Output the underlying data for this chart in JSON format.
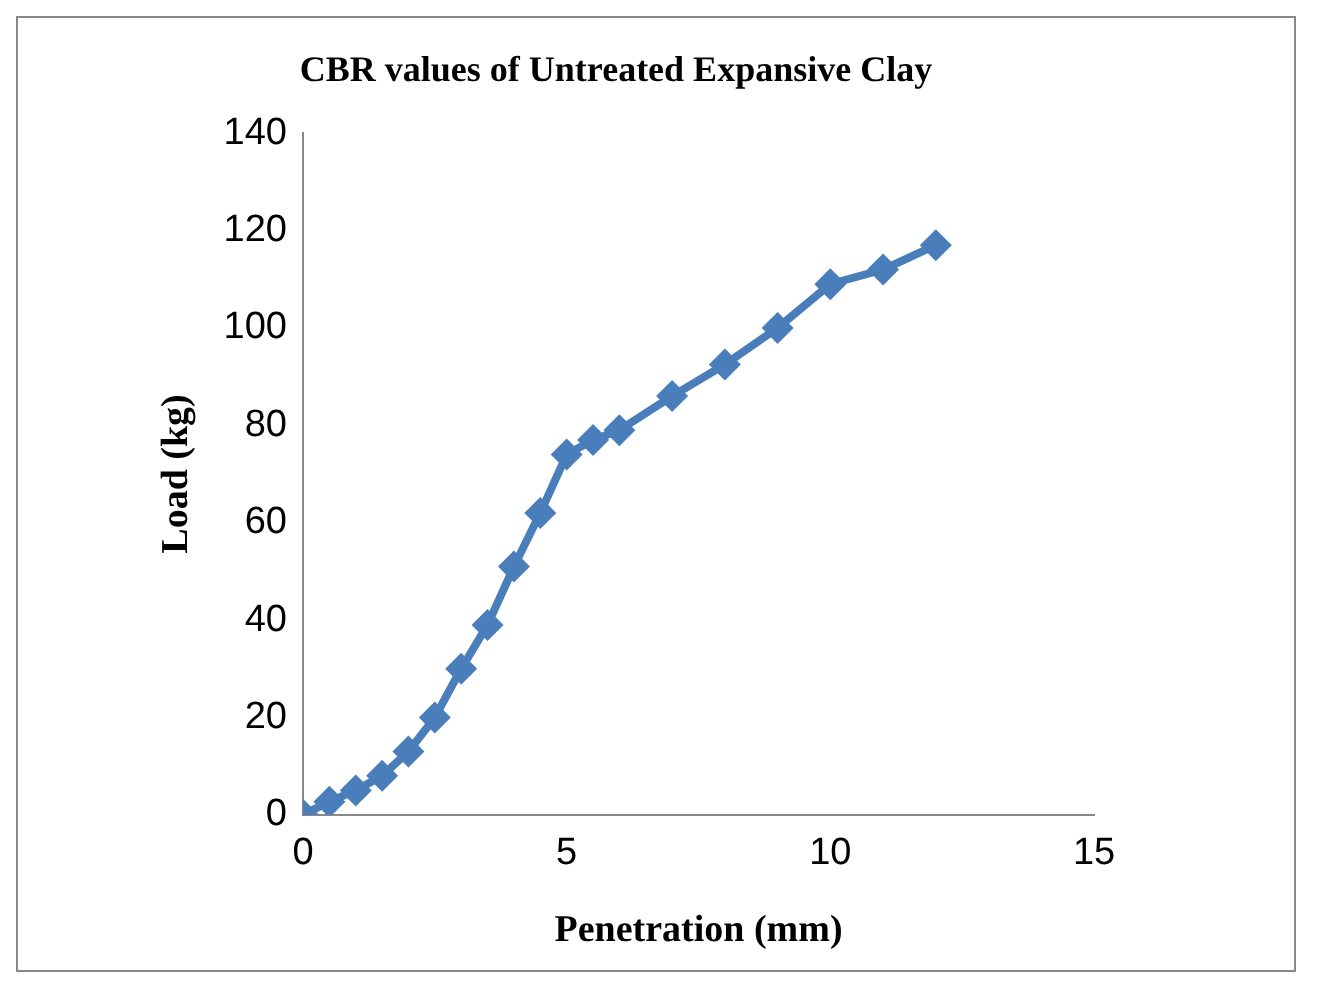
{
  "chart_data": {
    "type": "line",
    "title": "CBR values of Untreated Expansive Clay",
    "xlabel": "Penetration (mm)",
    "ylabel": "Load (kg)",
    "x": [
      0,
      0.5,
      1,
      1.5,
      2,
      2.5,
      3,
      3.5,
      4,
      4.5,
      5,
      5.5,
      6,
      7,
      8,
      9,
      10,
      11,
      12
    ],
    "series": [
      {
        "color": "#4a7ebb",
        "values": [
          0,
          2.7,
          5,
          8,
          13,
          20,
          30,
          39,
          51,
          62,
          74,
          77,
          79,
          86,
          92.5,
          100,
          109,
          112,
          117
        ]
      }
    ],
    "xlim": [
      0,
      15
    ],
    "xticks": [
      0,
      5,
      10,
      15
    ],
    "ylim": [
      0,
      140
    ],
    "yticks": [
      0,
      20,
      40,
      60,
      80,
      100,
      120,
      140
    ],
    "grid": false,
    "legend": false,
    "marker": "diamond",
    "line_style": "solid"
  }
}
